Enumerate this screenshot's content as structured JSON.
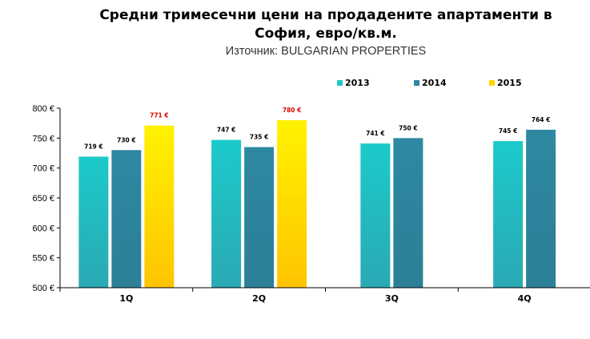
{
  "header": {
    "title_line1": "Средни тримесечни цени на продадените апартаменти в",
    "title_line2": "София, евро/кв.м.",
    "source": "Източник: BULGARIAN PROPERTIES"
  },
  "chart_data": {
    "type": "bar",
    "title": "Средни тримесечни цени на продадените апартаменти в София, евро/кв.м.",
    "subtitle": "Източник: BULGARIAN PROPERTIES",
    "categories": [
      "1Q",
      "2Q",
      "3Q",
      "4Q"
    ],
    "series": [
      {
        "name": "2013",
        "values": [
          719,
          747,
          741,
          745
        ],
        "labels": [
          "719 €",
          "747 €",
          "741 €",
          "745 €"
        ],
        "color": "#1cc7c7"
      },
      {
        "name": "2014",
        "values": [
          730,
          735,
          750,
          764
        ],
        "labels": [
          "730 €",
          "735 €",
          "750 €",
          "764 €"
        ],
        "color": "#2e86a0"
      },
      {
        "name": "2015",
        "values": [
          771,
          780,
          null,
          null
        ],
        "labels": [
          "771 €",
          "780 €",
          "",
          ""
        ],
        "color": "#ffd400",
        "label_color": "#e00000"
      }
    ],
    "ylim": [
      500,
      800
    ],
    "yticks": [
      500,
      550,
      600,
      650,
      700,
      750,
      800
    ],
    "ytick_labels": [
      "500 €",
      "550 €",
      "600 €",
      "650 €",
      "700 €",
      "750 €",
      "800 €"
    ],
    "legend_position": "top-right",
    "grid": false
  }
}
